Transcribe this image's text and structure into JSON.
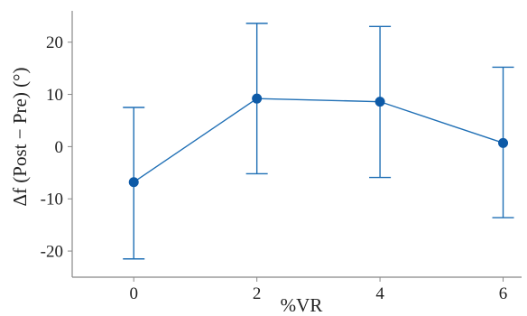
{
  "chart_data": {
    "type": "line",
    "x": [
      0,
      2,
      4,
      6
    ],
    "series": [
      {
        "values": [
          -6.8,
          9.2,
          8.6,
          0.7
        ],
        "error_upper": [
          7.5,
          23.6,
          23.0,
          15.2
        ],
        "error_lower": [
          -21.5,
          -5.2,
          -5.9,
          -13.6
        ],
        "color": "#1f6fb5"
      }
    ],
    "xlabel": "%VR",
    "ylabel": "Δf (Post − Pre) (°)",
    "x_ticks": [
      "0",
      "2",
      "4",
      "6"
    ],
    "y_ticks": [
      "-20",
      "-10",
      "0",
      "10",
      "20"
    ],
    "xlim": [
      -1,
      6.3
    ],
    "ylim": [
      -25,
      26
    ],
    "grid": false,
    "legend": "none",
    "colors": {
      "series": "#1f6fb5",
      "marker": "#0d5aa7",
      "axis": "#888888"
    }
  }
}
